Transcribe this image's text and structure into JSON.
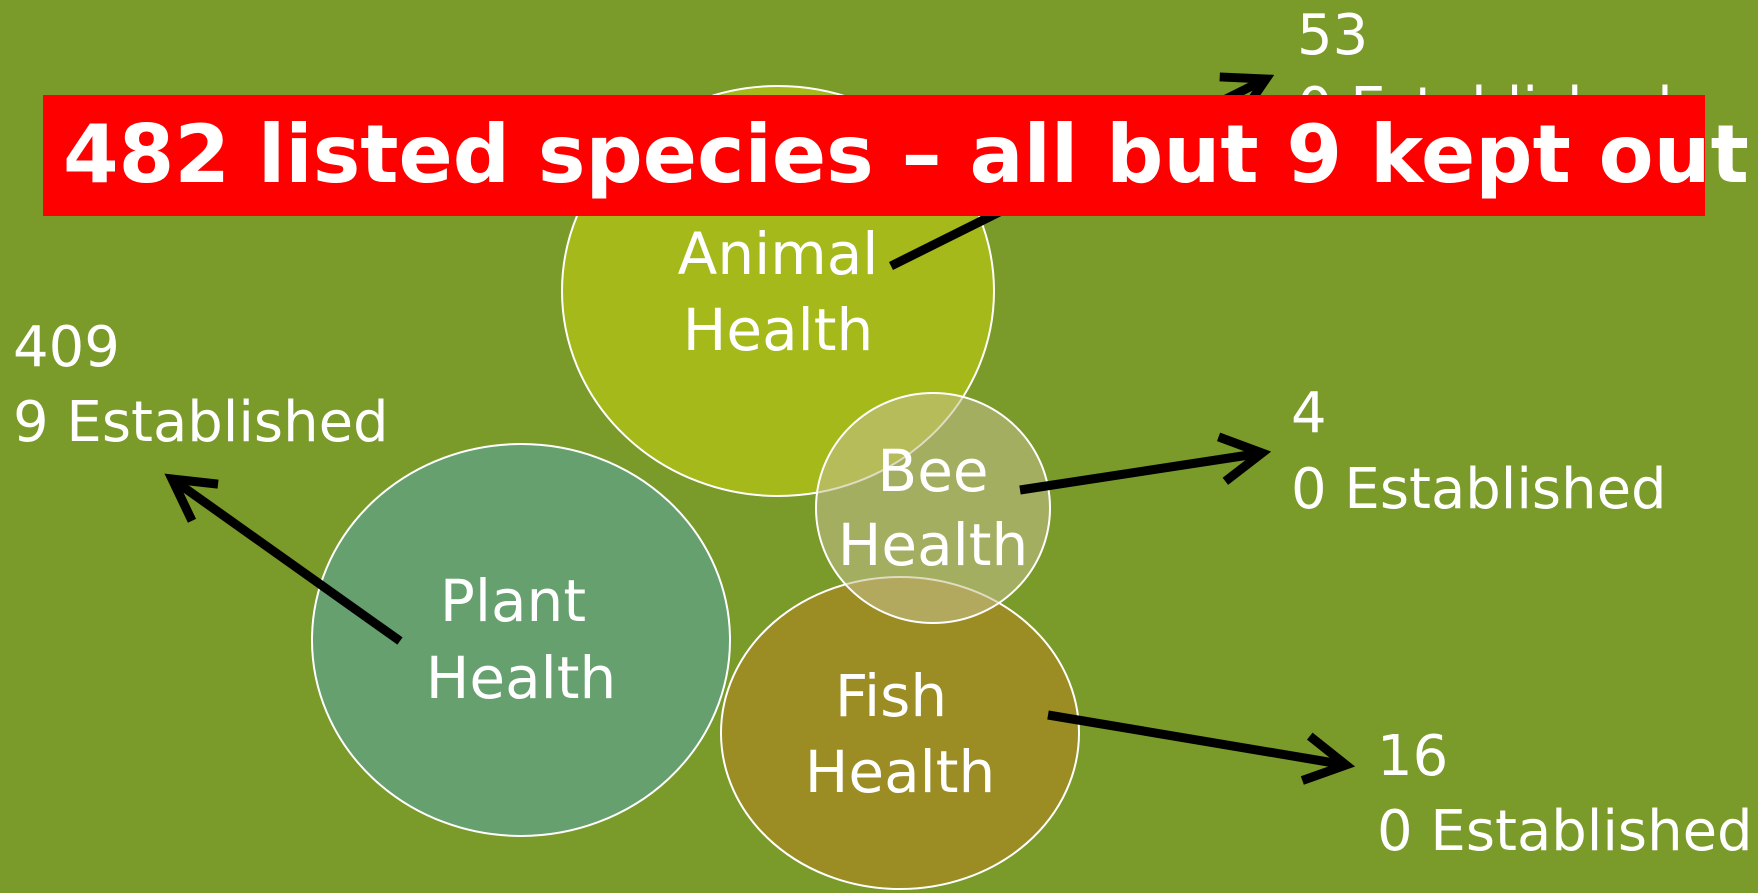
{
  "banner": {
    "title": "482 listed species – all but 9 kept out"
  },
  "nodes": [
    {
      "label": [
        "Plant",
        "Health"
      ],
      "count": 409,
      "established": "9 Established"
    },
    {
      "label": [
        "Animal",
        "Health"
      ],
      "count": 53,
      "established": "0 Established"
    },
    {
      "label": [
        "Fish",
        "Health"
      ],
      "count": 16,
      "established": "0 Established"
    },
    {
      "label": [
        "Bee",
        "Health"
      ],
      "count": 4,
      "established": "0 Established"
    }
  ]
}
